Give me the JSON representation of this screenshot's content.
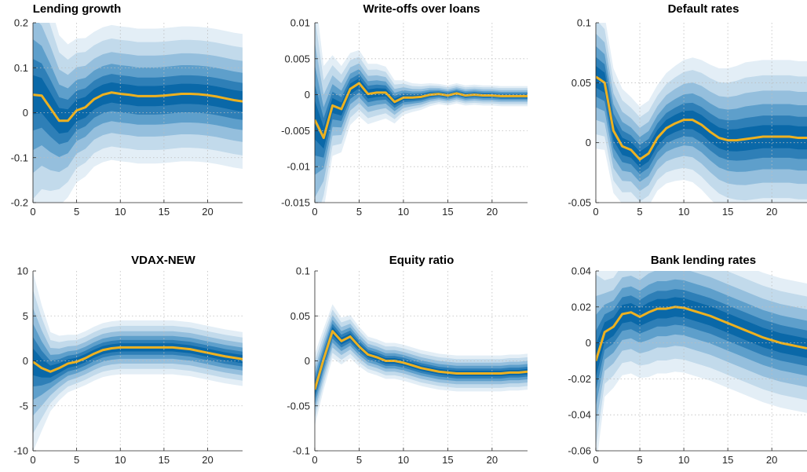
{
  "chart_data": [
    {
      "type": "area",
      "title": "Lending growth",
      "xlim": [
        0,
        24
      ],
      "ylim": [
        -0.2,
        0.2
      ],
      "xticks": [
        0,
        5,
        10,
        15,
        20
      ],
      "yticks": [
        -0.2,
        -0.1,
        0,
        0.1,
        0.2
      ],
      "ytick_labels": [
        "-0.2",
        "-0.1",
        "0",
        "0.1",
        "0.2"
      ],
      "grid": true,
      "band_colors": [
        "#E3EEF6",
        "#C2DAEB",
        "#95BFDD",
        "#5E9FCB",
        "#2E7FB7",
        "#0A68A8"
      ],
      "median_color": "#EDB120",
      "x": [
        0,
        1,
        2,
        3,
        4,
        5,
        6,
        7,
        8,
        9,
        10,
        11,
        12,
        13,
        14,
        15,
        16,
        17,
        18,
        19,
        20,
        21,
        22,
        23,
        24
      ],
      "median": [
        0.04,
        0.038,
        0.01,
        -0.018,
        -0.018,
        0.005,
        0.012,
        0.03,
        0.04,
        0.045,
        0.042,
        0.04,
        0.037,
        0.037,
        0.037,
        0.038,
        0.04,
        0.042,
        0.042,
        0.041,
        0.039,
        0.036,
        0.032,
        0.028,
        0.025
      ],
      "spread": [
        0.145,
        0.13,
        0.115,
        0.095,
        0.085,
        0.08,
        0.077,
        0.075,
        0.075,
        0.075,
        0.075,
        0.075,
        0.075,
        0.075,
        0.075,
        0.075,
        0.075,
        0.075,
        0.075,
        0.075,
        0.075,
        0.075,
        0.075,
        0.075,
        0.075
      ]
    },
    {
      "type": "area",
      "title": "Write-offs over loans",
      "xlim": [
        0,
        24
      ],
      "ylim": [
        -0.015,
        0.01
      ],
      "xticks": [
        0,
        5,
        10,
        15,
        20
      ],
      "yticks": [
        -0.015,
        -0.01,
        -0.005,
        0,
        0.005,
        0.01
      ],
      "ytick_labels": [
        "-0.015",
        "-0.01",
        "-0.005",
        "0",
        "0.005",
        "0.01"
      ],
      "grid": true,
      "band_colors": [
        "#E3EEF6",
        "#C2DAEB",
        "#95BFDD",
        "#5E9FCB",
        "#2E7FB7",
        "#0A68A8"
      ],
      "median_color": "#EDB120",
      "x": [
        0,
        1,
        2,
        3,
        4,
        5,
        6,
        7,
        8,
        9,
        10,
        11,
        12,
        13,
        14,
        15,
        16,
        17,
        18,
        19,
        20,
        21,
        22,
        23,
        24
      ],
      "median": [
        -0.0035,
        -0.006,
        -0.0015,
        -0.002,
        0.0008,
        0.0016,
        0.0001,
        0.0003,
        0.0003,
        -0.001,
        -0.0004,
        -0.0004,
        -0.0003,
        0.0,
        0.0001,
        -0.0001,
        0.0002,
        -0.0001,
        0.0,
        -0.0001,
        -0.0001,
        -0.0002,
        -0.0002,
        -0.0002,
        -0.0002
      ],
      "spread": [
        0.009,
        0.005,
        0.0035,
        0.003,
        0.0025,
        0.0023,
        0.0021,
        0.002,
        0.0018,
        0.0015,
        0.0012,
        0.001,
        0.0009,
        0.0008,
        0.0007,
        0.0007,
        0.0007,
        0.0007,
        0.0007,
        0.0007,
        0.0007,
        0.0007,
        0.0007,
        0.0007,
        0.0007
      ]
    },
    {
      "type": "area",
      "title": "Default rates",
      "xlim": [
        0,
        24
      ],
      "ylim": [
        -0.05,
        0.1
      ],
      "xticks": [
        0,
        5,
        10,
        15,
        20
      ],
      "yticks": [
        -0.05,
        0,
        0.05,
        0.1
      ],
      "ytick_labels": [
        "-0.05",
        "0",
        "0.05",
        "0.1"
      ],
      "grid": true,
      "band_colors": [
        "#E3EEF6",
        "#C2DAEB",
        "#95BFDD",
        "#5E9FCB",
        "#2E7FB7",
        "#0A68A8"
      ],
      "median_color": "#EDB120",
      "x": [
        0,
        1,
        2,
        3,
        4,
        5,
        6,
        7,
        8,
        9,
        10,
        11,
        12,
        13,
        14,
        15,
        16,
        17,
        18,
        19,
        20,
        21,
        22,
        23,
        24
      ],
      "median": [
        0.055,
        0.05,
        0.01,
        -0.003,
        -0.006,
        -0.014,
        -0.009,
        0.004,
        0.012,
        0.016,
        0.019,
        0.019,
        0.015,
        0.009,
        0.004,
        0.002,
        0.002,
        0.003,
        0.004,
        0.005,
        0.005,
        0.005,
        0.005,
        0.004,
        0.004
      ],
      "spread": [
        0.03,
        0.028,
        0.026,
        0.024,
        0.022,
        0.022,
        0.022,
        0.022,
        0.023,
        0.024,
        0.025,
        0.026,
        0.027,
        0.028,
        0.029,
        0.03,
        0.031,
        0.032,
        0.032,
        0.032,
        0.032,
        0.032,
        0.032,
        0.032,
        0.032
      ]
    },
    {
      "type": "area",
      "title": "VDAX-NEW",
      "xlim": [
        0,
        24
      ],
      "ylim": [
        -10,
        10
      ],
      "xticks": [
        0,
        5,
        10,
        15,
        20
      ],
      "yticks": [
        -10,
        -5,
        0,
        5,
        10
      ],
      "ytick_labels": [
        "-10",
        "-5",
        "0",
        "5",
        "10"
      ],
      "grid": true,
      "band_colors": [
        "#E3EEF6",
        "#C2DAEB",
        "#95BFDD",
        "#5E9FCB",
        "#2E7FB7",
        "#0A68A8"
      ],
      "median_color": "#EDB120",
      "x": [
        0,
        1,
        2,
        3,
        4,
        5,
        6,
        7,
        8,
        9,
        10,
        11,
        12,
        13,
        14,
        15,
        16,
        17,
        18,
        19,
        20,
        21,
        22,
        23,
        24
      ],
      "median": [
        -0.1,
        -0.8,
        -1.2,
        -0.8,
        -0.3,
        -0.1,
        0.3,
        0.8,
        1.2,
        1.4,
        1.5,
        1.5,
        1.5,
        1.5,
        1.5,
        1.5,
        1.5,
        1.4,
        1.3,
        1.1,
        0.9,
        0.7,
        0.5,
        0.35,
        0.2
      ],
      "spread": [
        5.0,
        3.5,
        2.2,
        1.8,
        1.6,
        1.5,
        1.5,
        1.5,
        1.5,
        1.5,
        1.5,
        1.5,
        1.5,
        1.5,
        1.5,
        1.5,
        1.5,
        1.5,
        1.5,
        1.5,
        1.5,
        1.5,
        1.5,
        1.5,
        1.5
      ]
    },
    {
      "type": "area",
      "title": "Equity ratio",
      "xlim": [
        0,
        24
      ],
      "ylim": [
        -0.1,
        0.1
      ],
      "xticks": [
        0,
        5,
        10,
        15,
        20
      ],
      "yticks": [
        -0.1,
        -0.05,
        0,
        0.05,
        0.1
      ],
      "ytick_labels": [
        "-0.1",
        "-0.05",
        "0",
        "0.05",
        "0.1"
      ],
      "grid": true,
      "band_colors": [
        "#E3EEF6",
        "#C2DAEB",
        "#95BFDD",
        "#5E9FCB",
        "#2E7FB7",
        "#0A68A8"
      ],
      "median_color": "#EDB120",
      "x": [
        0,
        1,
        2,
        3,
        4,
        5,
        6,
        7,
        8,
        9,
        10,
        11,
        12,
        13,
        14,
        15,
        16,
        17,
        18,
        19,
        20,
        21,
        22,
        23,
        24
      ],
      "median": [
        -0.032,
        0.002,
        0.033,
        0.022,
        0.027,
        0.016,
        0.007,
        0.004,
        0.0,
        0.0,
        -0.002,
        -0.005,
        -0.008,
        -0.01,
        -0.012,
        -0.013,
        -0.014,
        -0.014,
        -0.014,
        -0.014,
        -0.014,
        -0.014,
        -0.013,
        -0.013,
        -0.012
      ],
      "spread": [
        0.02,
        0.017,
        0.015,
        0.013,
        0.012,
        0.011,
        0.01,
        0.01,
        0.01,
        0.01,
        0.01,
        0.01,
        0.01,
        0.01,
        0.01,
        0.01,
        0.01,
        0.01,
        0.01,
        0.01,
        0.01,
        0.01,
        0.01,
        0.01,
        0.01
      ]
    },
    {
      "type": "area",
      "title": "Bank lending rates",
      "xlim": [
        0,
        24
      ],
      "ylim": [
        -0.06,
        0.04
      ],
      "xticks": [
        0,
        5,
        10,
        15,
        20
      ],
      "yticks": [
        -0.06,
        -0.04,
        -0.02,
        0,
        0.02,
        0.04
      ],
      "ytick_labels": [
        "-0.06",
        "-0.04",
        "-0.02",
        "0",
        "0.02",
        "0.04"
      ],
      "grid": true,
      "band_colors": [
        "#E3EEF6",
        "#C2DAEB",
        "#95BFDD",
        "#5E9FCB",
        "#2E7FB7",
        "#0A68A8"
      ],
      "median_color": "#EDB120",
      "x": [
        0,
        1,
        2,
        3,
        4,
        5,
        6,
        7,
        8,
        9,
        10,
        11,
        12,
        13,
        14,
        15,
        16,
        17,
        18,
        19,
        20,
        21,
        22,
        23,
        24
      ],
      "median": [
        -0.01,
        0.006,
        0.009,
        0.016,
        0.017,
        0.0145,
        0.017,
        0.019,
        0.019,
        0.02,
        0.0195,
        0.018,
        0.0165,
        0.015,
        0.013,
        0.011,
        0.009,
        0.007,
        0.005,
        0.003,
        0.0015,
        0.0,
        -0.001,
        -0.002,
        -0.003
      ],
      "spread": [
        0.03,
        0.018,
        0.017,
        0.017,
        0.017,
        0.017,
        0.018,
        0.018,
        0.018,
        0.018,
        0.018,
        0.018,
        0.018,
        0.018,
        0.018,
        0.018,
        0.018,
        0.018,
        0.018,
        0.018,
        0.018,
        0.018,
        0.018,
        0.018,
        0.018
      ]
    }
  ]
}
